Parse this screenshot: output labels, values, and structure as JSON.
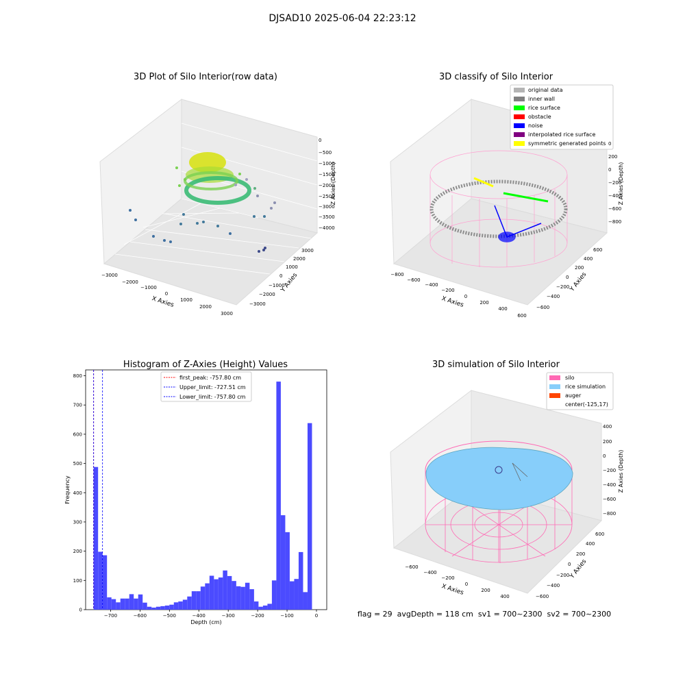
{
  "figure": {
    "suptitle": "DJSAD10 2025-06-04 22:23:12",
    "status_line": "flag = 29  avgDepth = 118 cm  sv1 = 700~2300  sv2 = 700~2300"
  },
  "colors": {
    "hist_bar": "#4b4bff",
    "first_peak_line": "#ff0000",
    "limit_line": "#0000ff",
    "silo": "#ff69b4",
    "rice_simulation": "#87cefa",
    "auger": "#ff4500",
    "original_data": "#b4b4b4",
    "inner_wall": "#808080",
    "rice_surface": "#00ff00",
    "obstacle": "#ff0000",
    "noise": "#0000ff",
    "interpolated_rice_surface": "#800080",
    "symmetric_generated_points": "#ffff00"
  },
  "panels": {
    "raw": {
      "title": "3D Plot of Silo Interior(row data)",
      "xlabel": "X Axies",
      "ylabel": "Y Axies",
      "zlabel": "Z Axies (Depth)",
      "xticks": [
        "−3000",
        "−2000",
        "−1000",
        "0",
        "1000",
        "2000",
        "3000"
      ],
      "yticks": [
        "3000",
        "2000",
        "1000",
        "0",
        "−1000",
        "−2000",
        "−3000"
      ],
      "zticks": [
        "0",
        "−500",
        "−1000",
        "−1500",
        "−2000",
        "−2500",
        "−3000",
        "−3500",
        "−4000"
      ]
    },
    "classify": {
      "title": "3D classify of Silo Interior",
      "xlabel": "X Axies",
      "ylabel": "Y Axies",
      "zlabel": "Z Axies (Depth)",
      "xticks": [
        "−800",
        "−600",
        "−400",
        "−200",
        "0",
        "200",
        "400",
        "600"
      ],
      "yticks": [
        "600",
        "400",
        "200",
        "0",
        "−200",
        "−400",
        "−600"
      ],
      "zticks": [
        "200",
        "0",
        "−200",
        "−400",
        "−600",
        "−800"
      ],
      "ztick_partial": "0",
      "legend": [
        {
          "label": "original data",
          "color": "#b4b4b4"
        },
        {
          "label": "inner wall",
          "color": "#808080"
        },
        {
          "label": "rice surface",
          "color": "#00ff00"
        },
        {
          "label": "obstacle",
          "color": "#ff0000"
        },
        {
          "label": "noise",
          "color": "#0000ff"
        },
        {
          "label": "interpolated rice surface",
          "color": "#800080"
        },
        {
          "label": "symmetric generated points",
          "color": "#ffff00"
        }
      ]
    },
    "simulation": {
      "title": "3D simulation of Silo Interior",
      "xlabel": "X Axies",
      "ylabel": "Y Axies",
      "zlabel": "Z Axies (Depth)",
      "xticks": [
        "−600",
        "−400",
        "−200",
        "0",
        "200",
        "400"
      ],
      "yticks": [
        "600",
        "400",
        "200",
        "0",
        "−200",
        "−400",
        "−600"
      ],
      "zticks": [
        "400",
        "200",
        "0",
        "−200",
        "−400",
        "−600",
        "−800"
      ],
      "legend": [
        {
          "label": "silo",
          "color": "#ff69b4"
        },
        {
          "label": "rice simulation",
          "color": "#87cefa"
        },
        {
          "label": "auger",
          "color": "#ff4500"
        },
        {
          "label": "center(-125,17)",
          "color": ""
        }
      ]
    }
  },
  "chart_data": {
    "type": "bar",
    "title": "Histogram of Z-Axies (Height) Values",
    "xlabel": "Depth (cm)",
    "ylabel": "Frequency",
    "xlim": [
      -785,
      35
    ],
    "ylim": [
      0,
      820
    ],
    "xticks": [
      -700,
      -600,
      -500,
      -400,
      -300,
      -200,
      -100,
      0
    ],
    "xtick_labels": [
      "−700",
      "−600",
      "−500",
      "−400",
      "−300",
      "−200",
      "−100",
      "0"
    ],
    "yticks": [
      0,
      100,
      200,
      300,
      400,
      500,
      600,
      700,
      800
    ],
    "grid": false,
    "legend_position": "upper center",
    "bin_start": -757.8,
    "bin_width": 15.156,
    "values": [
      488,
      198,
      186,
      42,
      36,
      25,
      38,
      38,
      53,
      38,
      52,
      24,
      10,
      7,
      10,
      12,
      14,
      17,
      25,
      28,
      34,
      45,
      63,
      63,
      79,
      90,
      116,
      104,
      110,
      134,
      115,
      98,
      80,
      78,
      92,
      70,
      28,
      10,
      14,
      20,
      100,
      780,
      323,
      265,
      97,
      105,
      197,
      60,
      638
    ],
    "vlines": [
      {
        "name": "first_peak: -757.80 cm",
        "x": -757.8,
        "style": "dashed",
        "color": "#ff0000"
      },
      {
        "name": "Upper_limit: -727.51 cm",
        "x": -727.51,
        "style": "dashed",
        "color": "#0000ff"
      },
      {
        "name": "Lower_limit: -757.80 cm",
        "x": -757.8,
        "style": "dashed",
        "color": "#0000ff"
      }
    ]
  }
}
